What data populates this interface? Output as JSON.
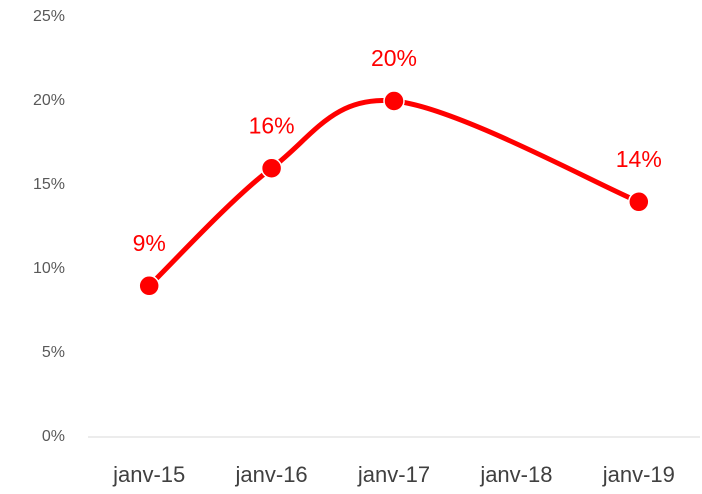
{
  "chart_data": {
    "type": "line",
    "x": [
      "janv-15",
      "janv-16",
      "janv-17",
      "janv-19"
    ],
    "values": [
      9,
      16,
      20,
      14
    ],
    "value_labels": [
      "9%",
      "16%",
      "20%",
      "14%"
    ],
    "color": "#ff0000",
    "smooth": true,
    "xticks": [
      "janv-15",
      "janv-16",
      "janv-17",
      "janv-18",
      "janv-19"
    ],
    "ylim": [
      0,
      25
    ],
    "yticks": [
      {
        "value": 0,
        "label": "0%"
      },
      {
        "value": 5,
        "label": "5%"
      },
      {
        "value": 10,
        "label": "10%"
      },
      {
        "value": 15,
        "label": "15%"
      },
      {
        "value": 20,
        "label": "20%"
      },
      {
        "value": 25,
        "label": "25%"
      }
    ],
    "grid": false
  }
}
